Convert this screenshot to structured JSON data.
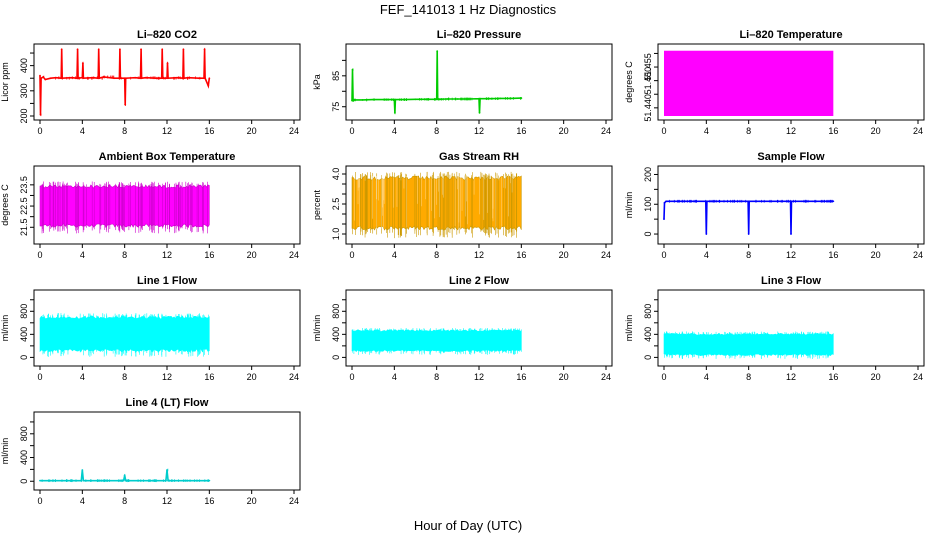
{
  "figure": {
    "title": "FEF_141013  1 Hz Diagnostics",
    "xlabel": "Hour of Day (UTC)"
  },
  "chart_data": [
    {
      "type": "line",
      "title": "Li–820 CO2",
      "ylabel": "Licor ppm",
      "color": "#ff0000",
      "xlim": [
        0,
        24
      ],
      "xticks": [
        "0",
        "4",
        "8",
        "12",
        "16",
        "20",
        "24"
      ],
      "ylim": [
        200,
        470
      ],
      "yticks": [
        200,
        250,
        300,
        350,
        400,
        450
      ],
      "yticklabels": [
        "200",
        "",
        "300",
        "",
        "400",
        ""
      ],
      "series": [
        {
          "x": [
            0,
            0.05,
            0.1,
            0.3,
            0.5,
            1,
            1.5,
            2,
            2.05,
            2.1,
            3,
            3.5,
            3.55,
            3.6,
            4,
            4.05,
            4.1,
            5,
            5.5,
            5.55,
            5.6,
            6,
            7,
            7.5,
            7.55,
            7.6,
            8,
            8.05,
            8.1,
            9,
            9.5,
            9.55,
            9.6,
            10,
            11,
            11.5,
            11.55,
            11.6,
            12,
            12.05,
            12.1,
            13,
            13.5,
            13.55,
            13.6,
            14,
            15,
            15.5,
            15.55,
            15.6,
            15.9,
            16
          ],
          "y": [
            360,
            205,
            350,
            355,
            345,
            350,
            352,
            350,
            465,
            350,
            352,
            350,
            465,
            350,
            352,
            410,
            350,
            352,
            350,
            465,
            350,
            355,
            350,
            350,
            465,
            350,
            350,
            245,
            350,
            352,
            350,
            465,
            350,
            352,
            350,
            350,
            465,
            350,
            350,
            410,
            350,
            352,
            350,
            465,
            350,
            352,
            350,
            350,
            465,
            350,
            320,
            350
          ]
        }
      ]
    },
    {
      "type": "line",
      "title": "Li–820 Pressure",
      "ylabel": "kPa",
      "color": "#00cc00",
      "xlim": [
        0,
        24
      ],
      "xticks": [
        "0",
        "4",
        "8",
        "12",
        "16",
        "20",
        "24"
      ],
      "ylim": [
        72,
        94
      ],
      "yticks": [
        75,
        80,
        85,
        90
      ],
      "yticklabels": [
        "75",
        "",
        "85",
        ""
      ],
      "series": [
        {
          "x": [
            0,
            0.05,
            0.1,
            0.2,
            1,
            2,
            3,
            4,
            4.05,
            4.1,
            5,
            6,
            7,
            8,
            8.05,
            8.1,
            9,
            10,
            11,
            12,
            12.05,
            12.1,
            13,
            14,
            15,
            16
          ],
          "y": [
            77,
            87,
            77,
            77.2,
            77.2,
            77.3,
            77.3,
            77.3,
            73,
            77.3,
            77.3,
            77.4,
            77.4,
            77.4,
            93,
            77.4,
            77.5,
            77.5,
            77.5,
            77.6,
            73,
            77.6,
            77.6,
            77.7,
            77.7,
            77.8
          ]
        }
      ]
    },
    {
      "type": "area",
      "title": "Li–820 Temperature",
      "ylabel": "degrees C",
      "color": "#ff00ff",
      "xlim": [
        0,
        24
      ],
      "xticks": [
        "0",
        "4",
        "8",
        "12",
        "16",
        "20",
        "24"
      ],
      "ylim": [
        51.437,
        51.462
      ],
      "yticks": [
        51.44,
        51.445,
        51.45,
        51.455,
        51.46
      ],
      "yticklabels": [
        "51.440",
        "",
        "51.450",
        "51.455",
        ""
      ],
      "band": {
        "x": [
          0,
          16
        ],
        "ymin": 51.437,
        "ymax": 51.461
      }
    },
    {
      "type": "line",
      "title": "Ambient Box Temperature",
      "ylabel": "degrees C",
      "color": "#cc00cc",
      "xlim": [
        0,
        24
      ],
      "xticks": [
        "0",
        "4",
        "8",
        "12",
        "16",
        "20",
        "24"
      ],
      "ylim": [
        20.9,
        24.2
      ],
      "yticks": [
        21.5,
        22.0,
        22.5,
        23.0,
        23.5
      ],
      "yticklabels": [
        "21.5",
        "",
        "22.5",
        "",
        "23.5"
      ],
      "band": {
        "x": [
          0,
          16
        ],
        "ymin": 21.5,
        "ymax": 23.5,
        "fill": "#ff00ff"
      }
    },
    {
      "type": "scatter",
      "title": "Gas Stream RH",
      "ylabel": "percent",
      "color": "#cc9900",
      "xlim": [
        0,
        24
      ],
      "xticks": [
        "0",
        "4",
        "8",
        "12",
        "16",
        "20",
        "24"
      ],
      "ylim": [
        0.7,
        4.2
      ],
      "yticks": [
        1.0,
        1.5,
        2.0,
        2.5,
        3.0,
        3.5,
        4.0
      ],
      "yticklabels": [
        "1.0",
        "",
        "",
        "2.5",
        "",
        "",
        "4.0"
      ],
      "band": {
        "x": [
          0,
          16
        ],
        "ymin": 1.2,
        "ymax": 3.9,
        "fill": "#ffaa00"
      }
    },
    {
      "type": "line",
      "title": "Sample Flow",
      "ylabel": "ml/min",
      "color": "#0000ff",
      "xlim": [
        0,
        24
      ],
      "xticks": [
        "0",
        "4",
        "8",
        "12",
        "16",
        "20",
        "24"
      ],
      "ylim": [
        -20,
        215
      ],
      "yticks": [
        0,
        50,
        100,
        150,
        200
      ],
      "yticklabels": [
        "0",
        "",
        "100",
        "",
        "200"
      ],
      "series": [
        {
          "x": [
            0,
            0.05,
            0.2,
            1,
            2,
            3,
            3.95,
            4,
            4.05,
            5,
            6,
            7,
            7.95,
            8,
            8.05,
            9,
            10,
            11,
            11.95,
            12,
            12.05,
            13,
            14,
            15,
            16
          ],
          "y": [
            50,
            105,
            110,
            110,
            110,
            110,
            110,
            0,
            110,
            110,
            110,
            110,
            110,
            0,
            110,
            110,
            110,
            110,
            110,
            0,
            110,
            110,
            110,
            110,
            110
          ]
        }
      ]
    },
    {
      "type": "area",
      "title": "Line 1 Flow",
      "ylabel": "ml/min",
      "color": "#00ffff",
      "xlim": [
        0,
        24
      ],
      "xticks": [
        "0",
        "4",
        "8",
        "12",
        "16",
        "20",
        "24"
      ],
      "ylim": [
        -80,
        1100
      ],
      "yticks": [
        0,
        200,
        400,
        600,
        800,
        1000
      ],
      "yticklabels": [
        "0",
        "",
        "400",
        "",
        "800",
        ""
      ],
      "band": {
        "x": [
          0,
          16
        ],
        "ymin": 100,
        "ymax": 720
      }
    },
    {
      "type": "area",
      "title": "Line 2 Flow",
      "ylabel": "ml/min",
      "color": "#00ffff",
      "xlim": [
        0,
        24
      ],
      "xticks": [
        "0",
        "4",
        "8",
        "12",
        "16",
        "20",
        "24"
      ],
      "ylim": [
        -80,
        1100
      ],
      "yticks": [
        0,
        200,
        400,
        600,
        800,
        1000
      ],
      "yticklabels": [
        "0",
        "",
        "400",
        "",
        "800",
        ""
      ],
      "band": {
        "x": [
          0,
          16
        ],
        "ymin": 100,
        "ymax": 480
      }
    },
    {
      "type": "area",
      "title": "Line 3 Flow",
      "ylabel": "ml/min",
      "color": "#00ffff",
      "xlim": [
        0,
        24
      ],
      "xticks": [
        "0",
        "4",
        "8",
        "12",
        "16",
        "20",
        "24"
      ],
      "ylim": [
        -80,
        1100
      ],
      "yticks": [
        0,
        200,
        400,
        600,
        800,
        1000
      ],
      "yticklabels": [
        "0",
        "",
        "400",
        "",
        "800",
        ""
      ],
      "band": {
        "x": [
          0,
          16
        ],
        "ymin": 30,
        "ymax": 420
      }
    },
    {
      "type": "line",
      "title": "Line 4 (LT) Flow",
      "ylabel": "ml/min",
      "color": "#00cccc",
      "xlim": [
        0,
        24
      ],
      "xticks": [
        "0",
        "4",
        "8",
        "12",
        "16",
        "20",
        "24"
      ],
      "ylim": [
        -80,
        1100
      ],
      "yticks": [
        0,
        200,
        400,
        600,
        800,
        1000
      ],
      "yticklabels": [
        "0",
        "",
        "400",
        "",
        "800",
        ""
      ],
      "series": [
        {
          "x": [
            0,
            3.9,
            4,
            4.1,
            7.9,
            8,
            8.1,
            11.9,
            12,
            12.1,
            16
          ],
          "y": [
            10,
            10,
            190,
            10,
            10,
            100,
            10,
            10,
            190,
            10,
            10
          ]
        }
      ]
    }
  ]
}
